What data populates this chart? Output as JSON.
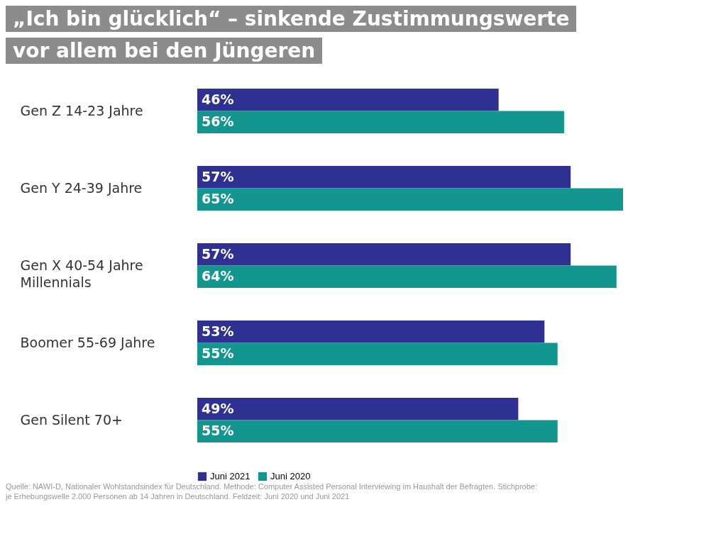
{
  "chart_data": {
    "type": "bar",
    "orientation": "horizontal",
    "title": "„Ich bin glücklich“ – sinkende Zustimmungswerte\nvor allem bei den Jüngeren",
    "categories": [
      "Gen Z   14-23 Jahre",
      "Gen Y   24-39 Jahre",
      "Gen X   40-54 Jahre\nMillennials",
      "Boomer   55-69 Jahre",
      "Gen Silent  70+"
    ],
    "series": [
      {
        "name": "Juni 2021",
        "color": "#2e3192",
        "values": [
          46,
          57,
          57,
          53,
          49
        ],
        "value_labels": [
          "46%",
          "57%",
          "57%",
          "53%",
          "49%"
        ]
      },
      {
        "name": "Juni 2020",
        "color": "#13968f",
        "values": [
          56,
          65,
          64,
          55,
          55
        ],
        "value_labels": [
          "56%",
          "65%",
          "64%",
          "55%",
          "55%"
        ]
      }
    ],
    "legend": "bottom",
    "annotations": [
      "Quelle: NAWI-D, Nationaler Wohlstandsindex für Deutschland. Methode: Computer Assisted Personal Interviewing im Haushalt der Befragten. Stichprobe: je Erhebungswelle 2.000 Personen ab 14 Jahren in Deutschland. Feldzeit: Juni 2020 und Juni 2021"
    ]
  }
}
